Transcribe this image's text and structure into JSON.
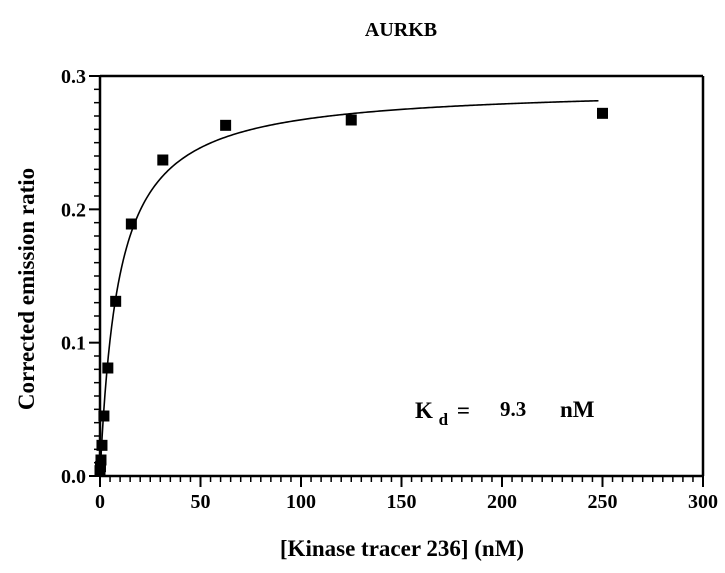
{
  "chart_data": {
    "type": "scatter",
    "title": "AURKB",
    "xlabel": "[Kinase tracer 236] (nM)",
    "ylabel": "Corrected emission ratio",
    "xlim": [
      0,
      300
    ],
    "ylim": [
      0,
      0.3
    ],
    "x_ticks": [
      "0",
      "50",
      "100",
      "150",
      "200",
      "250",
      "300"
    ],
    "y_ticks": [
      "0.0",
      "0.1",
      "0.2",
      "0.3"
    ],
    "grid": false,
    "series": [
      {
        "marker": "square",
        "color": "#000000",
        "points": [
          {
            "x": 0,
            "y": 0.004
          },
          {
            "x": 0.24,
            "y": 0.007
          },
          {
            "x": 0.49,
            "y": 0.012
          },
          {
            "x": 0.98,
            "y": 0.023
          },
          {
            "x": 1.95,
            "y": 0.045
          },
          {
            "x": 3.9,
            "y": 0.081
          },
          {
            "x": 7.8,
            "y": 0.131
          },
          {
            "x": 15.6,
            "y": 0.189
          },
          {
            "x": 31.25,
            "y": 0.237
          },
          {
            "x": 62.5,
            "y": 0.263
          },
          {
            "x": 125,
            "y": 0.267
          },
          {
            "x": 250,
            "y": 0.272
          }
        ]
      }
    ],
    "fit": {
      "model": "one-site specific binding",
      "bmax": 0.292,
      "kd": 9.3,
      "x_range": [
        0,
        248
      ],
      "color": "#000000"
    },
    "annotation": {
      "k_symbol": "K",
      "k_subscript": "d",
      "equals": "=",
      "value": "9.3",
      "unit": "nM"
    }
  }
}
